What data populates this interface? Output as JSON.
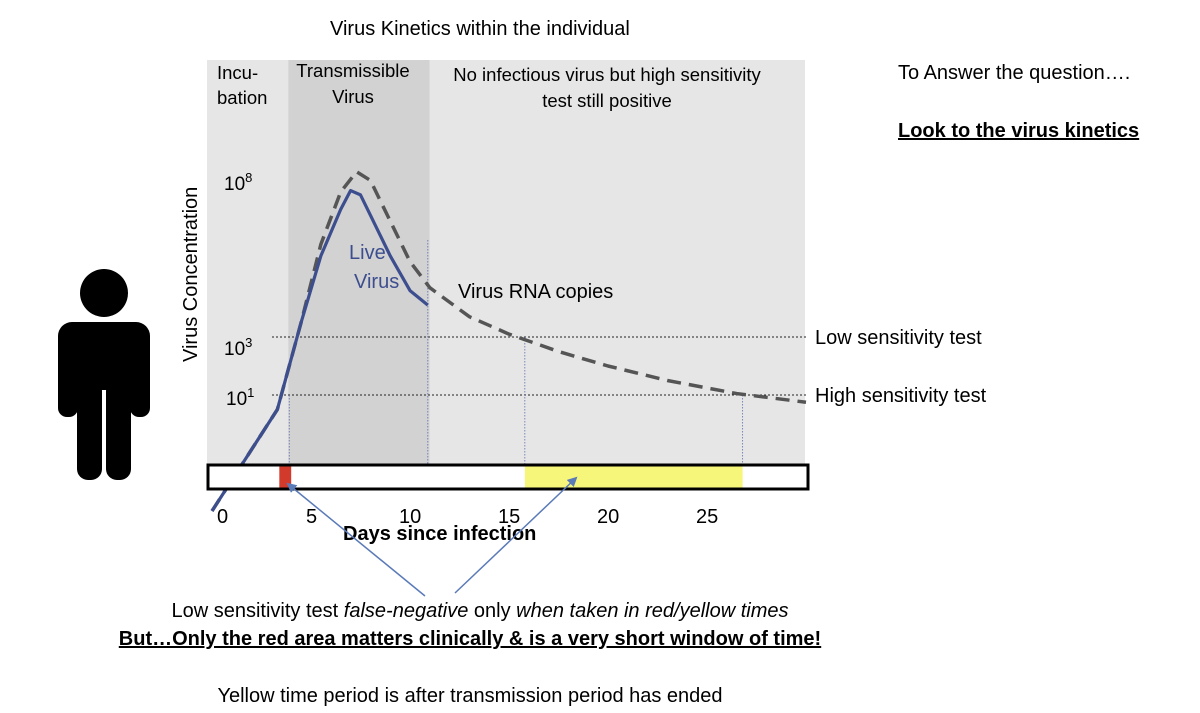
{
  "chart_data": {
    "type": "line",
    "title": "Virus Kinetics within the individual",
    "xlabel": "Days since infection",
    "ylabel": "Virus Concentration",
    "xlim": [
      0,
      30
    ],
    "x_ticks": [
      "0",
      "5",
      "10",
      "15",
      "20",
      "25"
    ],
    "y_ticks": [
      {
        "base": "10",
        "exp": "8"
      },
      {
        "base": "10",
        "exp": "3"
      },
      {
        "base": "10",
        "exp": "1"
      }
    ],
    "phases": [
      {
        "label_lines": [
          "Incu-",
          "bation"
        ],
        "start": 0,
        "end": 4
      },
      {
        "label_lines": [
          "Transmissible",
          "Virus"
        ],
        "start": 4,
        "end": 11
      },
      {
        "label_lines": [
          "No infectious virus but high sensitivity",
          "test still positive"
        ],
        "start": 11,
        "end": 30
      }
    ],
    "series": [
      {
        "name": "Virus RNA copies",
        "style": "dashed",
        "color": "#555555",
        "x": [
          0,
          3.3,
          4.5,
          5.5,
          6.5,
          7.3,
          8.0,
          9.0,
          10.0,
          11.0,
          13.0,
          15.0,
          17.5,
          20.0,
          23.0,
          26.5,
          30.0
        ],
        "y": [
          -3.0,
          0.5,
          3.5,
          6.2,
          8.0,
          8.7,
          8.4,
          7.0,
          5.6,
          4.7,
          3.7,
          3.1,
          2.5,
          2.0,
          1.5,
          1.05,
          0.75
        ]
      },
      {
        "name_lines": [
          "Live",
          "Virus"
        ],
        "style": "solid",
        "color": "#3d4e8f",
        "x": [
          0,
          3.3,
          4.5,
          5.5,
          6.5,
          7.0,
          7.5,
          8.0,
          9.0,
          10.0,
          10.9
        ],
        "y": [
          -3.0,
          0.5,
          3.5,
          5.8,
          7.4,
          8.05,
          7.9,
          7.2,
          5.8,
          4.6,
          4.1
        ]
      }
    ],
    "thresholds": [
      {
        "label": "Low sensitivity test",
        "y": 3
      },
      {
        "label": "High sensitivity test",
        "y": 1
      }
    ],
    "windows": [
      {
        "color": "#d23b2b",
        "start": 3.4,
        "end": 4.0
      },
      {
        "color": "#f6f67a",
        "start": 15.8,
        "end": 26.8
      }
    ],
    "colors": {
      "phase_light": "#e6e6e6",
      "phase_dark": "#d2d2d2",
      "arrow": "#5a7ab8"
    }
  },
  "side_note": "To Answer the question….",
  "side_link": "Look to the virus kinetics",
  "footer": {
    "line1_parts": [
      {
        "text": "Low sensitivity test ",
        "italic": false
      },
      {
        "text": "false-negative",
        "italic": true
      },
      {
        "text": " only ",
        "italic": false
      },
      {
        "text": "when taken in red/yellow times",
        "italic": true
      }
    ],
    "line2": "But…Only the red area matters clinically & is a very short window of time!",
    "line3": "Yellow time period is after transmission period has ended"
  },
  "icons": {
    "person": "person-silhouette-icon"
  }
}
